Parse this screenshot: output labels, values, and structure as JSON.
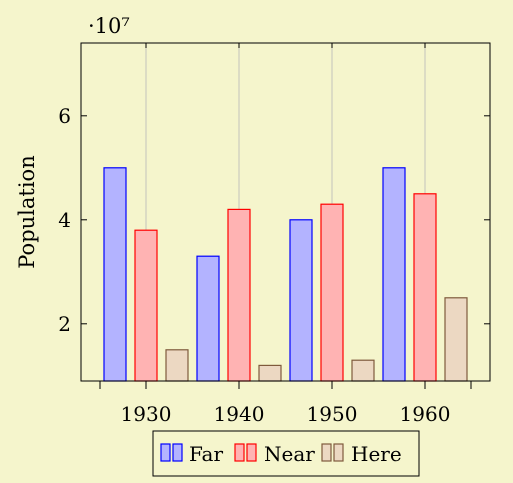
{
  "chart_data": {
    "type": "bar",
    "title": "",
    "xlabel": "",
    "ylabel": "Population",
    "y_multiplier": "·10⁷",
    "categories": [
      "1930",
      "1940",
      "1950",
      "1960"
    ],
    "series": [
      {
        "name": "Far",
        "values": [
          50000000,
          33000000,
          40000000,
          50000000
        ],
        "fill": "#b3b3ff",
        "stroke": "#0000ff"
      },
      {
        "name": "Near",
        "values": [
          38000000,
          42000000,
          43000000,
          45000000
        ],
        "fill": "#ffb3b3",
        "stroke": "#ff0000"
      },
      {
        "name": "Here",
        "values": [
          15000000,
          12000000,
          13000000,
          25000000
        ],
        "fill": "#ecd8c2",
        "stroke": "#7f5a3c"
      }
    ],
    "ylim": [
      9000000,
      74000000
    ],
    "yticks": [
      20000000,
      40000000,
      60000000
    ],
    "ytick_labels": [
      "2",
      "4",
      "6"
    ],
    "grid": "vertical",
    "legend_position": "bottom"
  }
}
